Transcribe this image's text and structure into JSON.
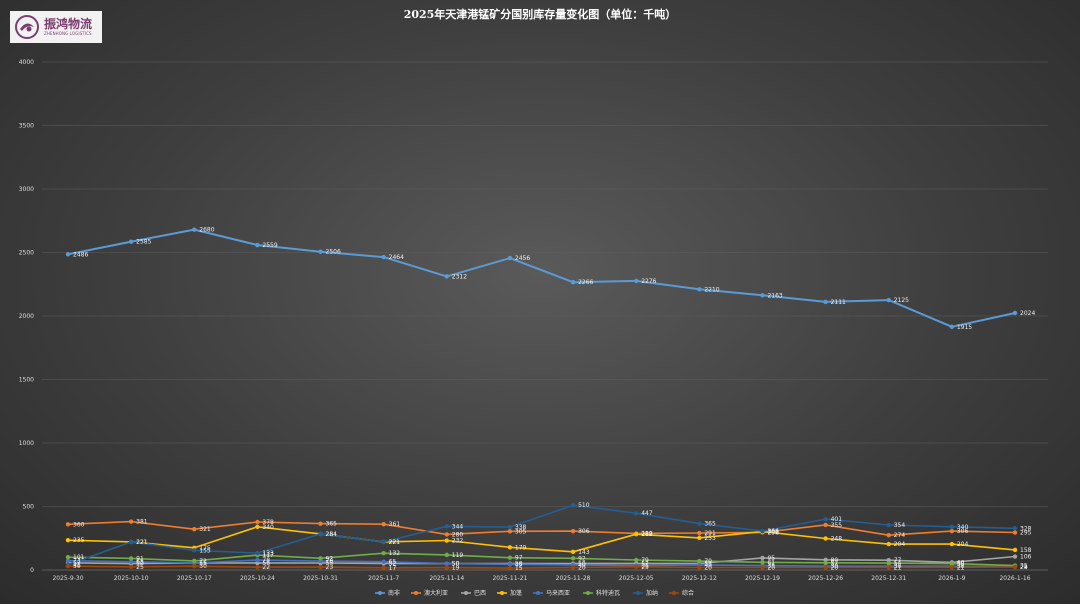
{
  "logo": {
    "text_cn": "振鸿物流",
    "text_en": "ZHENHONG LOGISTICS"
  },
  "chart_data": {
    "type": "line",
    "title": "2025年天津港锰矿分国别库存量变化图（单位：千吨）",
    "xlabel": "",
    "ylabel": "",
    "ylim": [
      0,
      4000
    ],
    "yticks": [
      0,
      500,
      1000,
      1500,
      2000,
      2500,
      3000,
      3500,
      4000
    ],
    "grid": true,
    "legend_position": "bottom",
    "categories": [
      "2025-9-30",
      "2025-10-10",
      "2025-10-17",
      "2025-10-24",
      "2025-10-31",
      "2025-11-7",
      "2025-11-14",
      "2025-11-21",
      "2025-11-28",
      "2025-12-05",
      "2025-12-12",
      "2025-12-19",
      "2025-12-26",
      "2025-12-31",
      "2026-1-9",
      "2026-1-16"
    ],
    "series": [
      {
        "name": "南非",
        "color": "#5b9bd5",
        "values": [
          2486,
          2585,
          2680,
          2559,
          2506,
          2464,
          2312,
          2456,
          2266,
          2276,
          2210,
          2163,
          2111,
          2125,
          1915,
          2024
        ]
      },
      {
        "name": "澳大利亚",
        "color": "#ed7d31",
        "values": [
          360,
          381,
          321,
          378,
          365,
          361,
          280,
          305,
          306,
          288,
          291,
          296,
          355,
          274,
          306,
          295
        ]
      },
      {
        "name": "巴西",
        "color": "#a5a5a5",
        "values": [
          57,
          50,
          55,
          56,
          55,
          52,
          50,
          50,
          50,
          52,
          51,
          95,
          80,
          77,
          60,
          106
        ]
      },
      {
        "name": "加蓬",
        "color": "#ffc000",
        "values": [
          235,
          221,
          175,
          340,
          284,
          221,
          232,
          179,
          143,
          282,
          253,
          302,
          248,
          204,
          204,
          158
        ]
      },
      {
        "name": "马来西亚",
        "color": "#4472c4",
        "values": [
          73,
          65,
          55,
          78,
          70,
          65,
          50,
          45,
          40,
          35,
          40,
          35,
          30,
          30,
          30,
          25
        ]
      },
      {
        "name": "科特迪瓦",
        "color": "#70ad47",
        "values": [
          101,
          91,
          72,
          117,
          92,
          132,
          119,
          97,
          92,
          79,
          70,
          61,
          57,
          54,
          50,
          35
        ]
      },
      {
        "name": "加纳",
        "color": "#255e91",
        "values": [
          41,
          221,
          155,
          133,
          284,
          221,
          344,
          338,
          510,
          447,
          365,
          306,
          401,
          354,
          340,
          328
        ]
      },
      {
        "name": "综合",
        "color": "#9e480e",
        "values": [
          30,
          25,
          30,
          22,
          23,
          17,
          19,
          15,
          20,
          25,
          20,
          20,
          20,
          21,
          21,
          24
        ]
      }
    ]
  }
}
